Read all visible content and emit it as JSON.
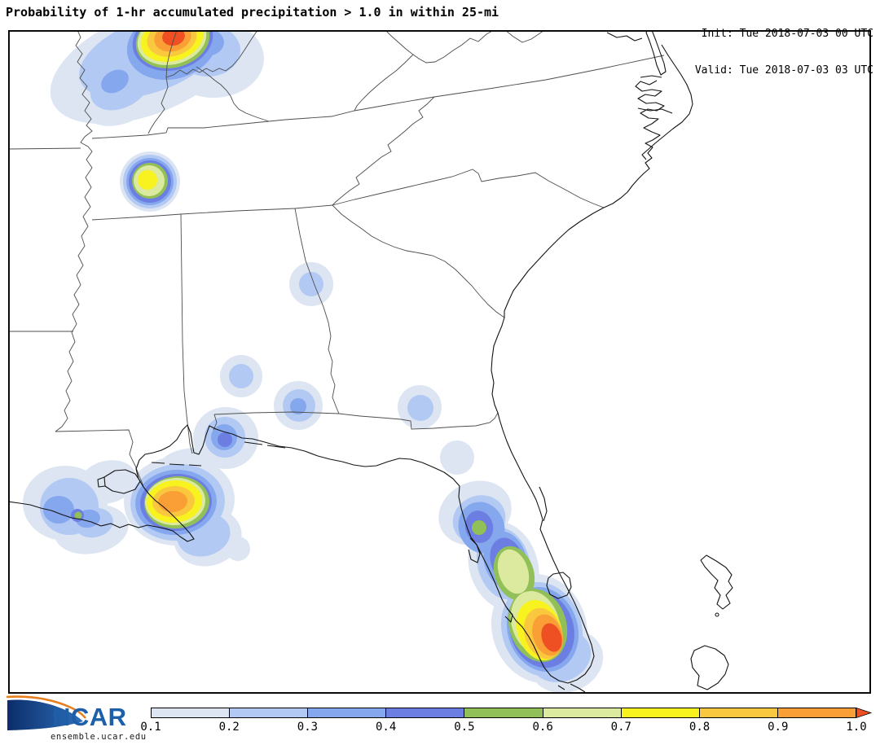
{
  "header": {
    "title": "Probability of 1-hr accumulated precipitation > 1.0 in within 25-mi",
    "init": "Init: Tue 2018-07-03 00 UTC",
    "valid": "Valid: Tue 2018-07-03 03 UTC"
  },
  "colorbar": {
    "tick_labels": [
      "0.1",
      "0.2",
      "0.3",
      "0.4",
      "0.5",
      "0.6",
      "0.7",
      "0.8",
      "0.9",
      "1.0"
    ],
    "segment_colors": [
      "#dce5f1",
      "#b2c9f4",
      "#85a7ed",
      "#6d7ee2",
      "#92c058",
      "#dcea9f",
      "#f8f31e",
      "#f9c83e",
      "#f99f35"
    ],
    "arrow_color": "#ee4f23"
  },
  "map": {
    "background": "#ffffff",
    "coast_color": "#141414",
    "state_border_color": "#4d4d4d",
    "frame_color": "#000000"
  },
  "footer": {
    "brand": "NCAR",
    "site": "ensemble.ucar.edu",
    "brand_color": "#1d5fa8",
    "swoosh_dark": "#0b2d69",
    "swoosh_light": "#2f6fba",
    "swoosh_accent": "#e87f1e"
  }
}
